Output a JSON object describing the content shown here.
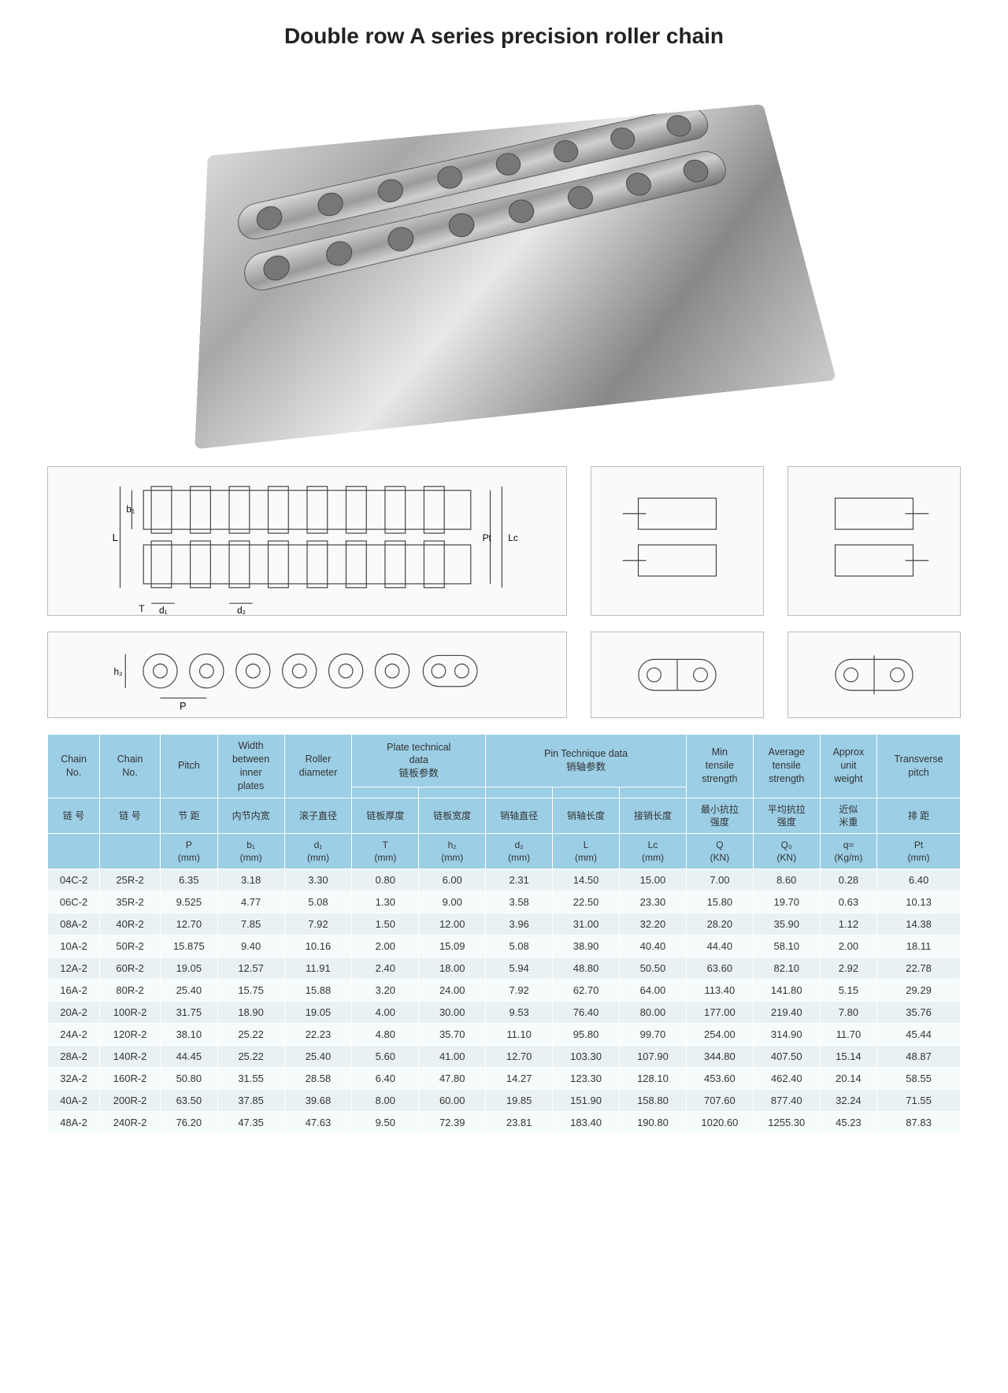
{
  "title": "Double row A series precision roller chain",
  "diagram_labels": {
    "L": "L",
    "b1": "b₁",
    "T": "T",
    "d1": "d₁",
    "d2": "d₂",
    "Pt": "Pt",
    "Lc": "Lc",
    "P": "P",
    "h2": "h₂"
  },
  "table": {
    "header_groups": [
      {
        "key": "chain1",
        "en": "Chain\nNo.",
        "cn": "链 号",
        "unit": ""
      },
      {
        "key": "chain2",
        "en": "Chain\nNo.",
        "cn": "链 号",
        "unit": ""
      },
      {
        "key": "pitch",
        "en": "Pitch",
        "cn": "节 距",
        "unit": "P\n(mm)"
      },
      {
        "key": "width",
        "en": "Width\nbetween\ninner\nplates",
        "cn": "内节内宽",
        "unit": "b₁\n(mm)"
      },
      {
        "key": "roller",
        "en": "Roller\ndiameter",
        "cn": "滚子直径",
        "unit": "d₁\n(mm)"
      },
      {
        "key": "plateT",
        "en": "Plate technical\ndata",
        "cn": "链板参数",
        "sub_cn": "链板厚度",
        "unit": "T\n(mm)"
      },
      {
        "key": "plateH",
        "en": "",
        "cn": "",
        "sub_cn": "链板宽度",
        "unit": "h₂\n(mm)"
      },
      {
        "key": "pinD",
        "en": "Pin Technique data",
        "cn": "销轴参数",
        "sub_cn": "销轴直径",
        "unit": "d₂\n(mm)"
      },
      {
        "key": "pinL",
        "en": "",
        "cn": "",
        "sub_cn": "销轴长度",
        "unit": "L\n(mm)"
      },
      {
        "key": "pinLc",
        "en": "",
        "cn": "",
        "sub_cn": "接销长度",
        "unit": "Lc\n(mm)"
      },
      {
        "key": "minQ",
        "en": "Min\ntensile\nstrength",
        "cn": "最小抗拉\n强度",
        "unit": "Q\n(KN)"
      },
      {
        "key": "avgQ",
        "en": "Average\ntensile\nstrength",
        "cn": "平均抗拉\n强度",
        "unit": "Q₀\n(KN)"
      },
      {
        "key": "weight",
        "en": "Approx\nunit\nweight",
        "cn": "近似\n米重",
        "unit": "q≈\n(Kg/m)"
      },
      {
        "key": "transv",
        "en": "Transverse\npitch",
        "cn": "排 距",
        "unit": "Pt\n(mm)"
      }
    ],
    "rows": [
      [
        "04C-2",
        "25R-2",
        "6.35",
        "3.18",
        "3.30",
        "0.80",
        "6.00",
        "2.31",
        "14.50",
        "15.00",
        "7.00",
        "8.60",
        "0.28",
        "6.40"
      ],
      [
        "06C-2",
        "35R-2",
        "9.525",
        "4.77",
        "5.08",
        "1.30",
        "9.00",
        "3.58",
        "22.50",
        "23.30",
        "15.80",
        "19.70",
        "0.63",
        "10.13"
      ],
      [
        "08A-2",
        "40R-2",
        "12.70",
        "7.85",
        "7.92",
        "1.50",
        "12.00",
        "3.96",
        "31.00",
        "32.20",
        "28.20",
        "35.90",
        "1.12",
        "14.38"
      ],
      [
        "10A-2",
        "50R-2",
        "15.875",
        "9.40",
        "10.16",
        "2.00",
        "15.09",
        "5.08",
        "38.90",
        "40.40",
        "44.40",
        "58.10",
        "2.00",
        "18.11"
      ],
      [
        "12A-2",
        "60R-2",
        "19.05",
        "12.57",
        "11.91",
        "2.40",
        "18.00",
        "5.94",
        "48.80",
        "50.50",
        "63.60",
        "82.10",
        "2.92",
        "22.78"
      ],
      [
        "16A-2",
        "80R-2",
        "25.40",
        "15.75",
        "15.88",
        "3.20",
        "24.00",
        "7.92",
        "62.70",
        "64.00",
        "113.40",
        "141.80",
        "5.15",
        "29.29"
      ],
      [
        "20A-2",
        "100R-2",
        "31.75",
        "18.90",
        "19.05",
        "4.00",
        "30.00",
        "9.53",
        "76.40",
        "80.00",
        "177.00",
        "219.40",
        "7.80",
        "35.76"
      ],
      [
        "24A-2",
        "120R-2",
        "38.10",
        "25.22",
        "22.23",
        "4.80",
        "35.70",
        "11.10",
        "95.80",
        "99.70",
        "254.00",
        "314.90",
        "11.70",
        "45.44"
      ],
      [
        "28A-2",
        "140R-2",
        "44.45",
        "25.22",
        "25.40",
        "5.60",
        "41.00",
        "12.70",
        "103.30",
        "107.90",
        "344.80",
        "407.50",
        "15.14",
        "48.87"
      ],
      [
        "32A-2",
        "160R-2",
        "50.80",
        "31.55",
        "28.58",
        "6.40",
        "47.80",
        "14.27",
        "123.30",
        "128.10",
        "453.60",
        "462.40",
        "20.14",
        "58.55"
      ],
      [
        "40A-2",
        "200R-2",
        "63.50",
        "37.85",
        "39.68",
        "8.00",
        "60.00",
        "19.85",
        "151.90",
        "158.80",
        "707.60",
        "877.40",
        "32.24",
        "71.55"
      ],
      [
        "48A-2",
        "240R-2",
        "76.20",
        "47.35",
        "47.63",
        "9.50",
        "72.39",
        "23.81",
        "183.40",
        "190.80",
        "1020.60",
        "1255.30",
        "45.23",
        "87.83"
      ]
    ],
    "colors": {
      "header_bg": "#9ccee5",
      "row_odd_bg": "#e9f2f2",
      "row_even_bg": "#f6fbfb",
      "text": "#333333",
      "border": "#ffffff"
    }
  }
}
